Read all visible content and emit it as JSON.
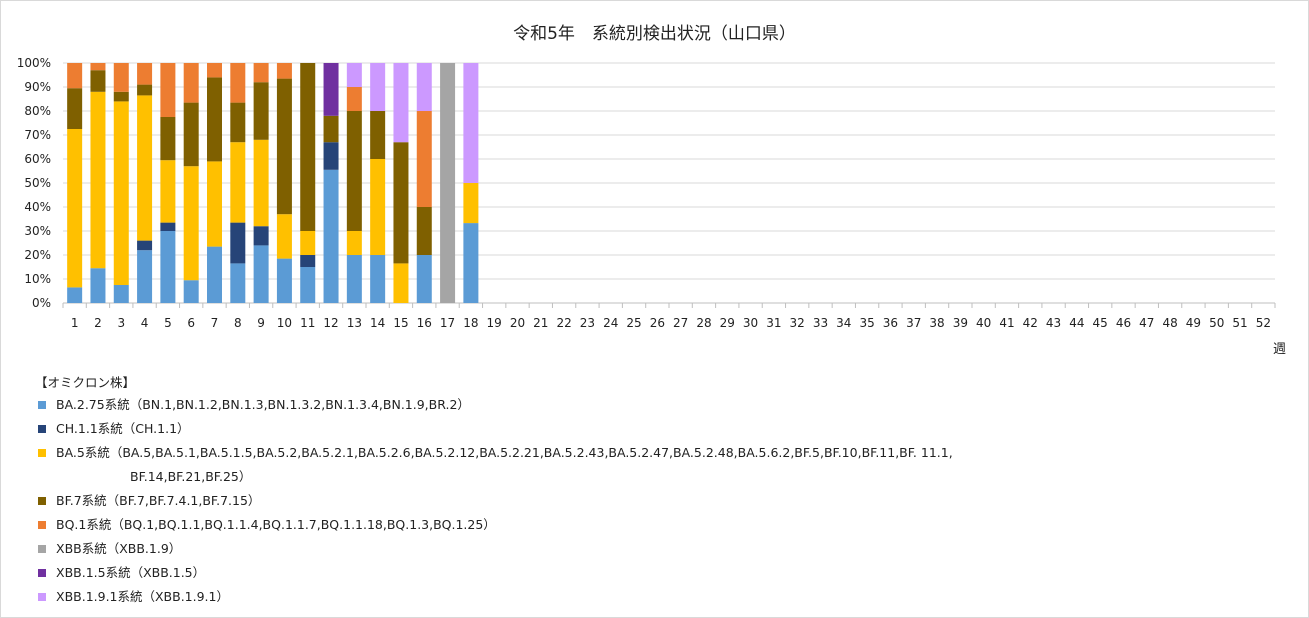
{
  "chart_data": {
    "type": "bar",
    "stacked": true,
    "percent": true,
    "title": "令和5年　系統別検出状況（山口県）",
    "xlabel": "週",
    "ylabel": "",
    "ylim": [
      0,
      100
    ],
    "yticks": [
      "0%",
      "10%",
      "20%",
      "30%",
      "40%",
      "50%",
      "60%",
      "70%",
      "80%",
      "90%",
      "100%"
    ],
    "grid": true,
    "legend_position": "bottom-left",
    "legend_title": "【オミクロン株】",
    "categories": [
      "1",
      "2",
      "3",
      "4",
      "5",
      "6",
      "7",
      "8",
      "9",
      "10",
      "11",
      "12",
      "13",
      "14",
      "15",
      "16",
      "17",
      "18",
      "19",
      "20",
      "21",
      "22",
      "23",
      "24",
      "25",
      "26",
      "27",
      "28",
      "29",
      "30",
      "31",
      "32",
      "33",
      "34",
      "35",
      "36",
      "37",
      "38",
      "39",
      "40",
      "41",
      "42",
      "43",
      "44",
      "45",
      "46",
      "47",
      "48",
      "49",
      "50",
      "51",
      "52"
    ],
    "series": [
      {
        "name": "BA.2.75系統",
        "legend_label": "BA.2.75系統（BN.1,BN.1.2,BN.1.3,BN.1.3.2,BN.1.3.4,BN.1.9,BR.2）",
        "color": "#5B9BD5",
        "values": [
          6.5,
          14.5,
          7.5,
          22,
          30,
          9.5,
          23.5,
          16.5,
          24,
          18.5,
          15,
          55.5,
          20,
          20,
          0,
          20,
          0,
          33.3,
          0,
          0,
          0,
          0,
          0,
          0,
          0,
          0,
          0,
          0,
          0,
          0,
          0,
          0,
          0,
          0,
          0,
          0,
          0,
          0,
          0,
          0,
          0,
          0,
          0,
          0,
          0,
          0,
          0,
          0,
          0,
          0,
          0,
          0
        ]
      },
      {
        "name": "CH.1.1系統",
        "legend_label": "CH.1.1系統（CH.1.1）",
        "color": "#264478",
        "values": [
          0,
          0,
          0,
          4,
          3.5,
          0,
          0,
          17,
          8,
          0,
          5,
          11.5,
          0,
          0,
          0,
          0,
          0,
          0,
          0,
          0,
          0,
          0,
          0,
          0,
          0,
          0,
          0,
          0,
          0,
          0,
          0,
          0,
          0,
          0,
          0,
          0,
          0,
          0,
          0,
          0,
          0,
          0,
          0,
          0,
          0,
          0,
          0,
          0,
          0,
          0,
          0,
          0
        ]
      },
      {
        "name": "BA.5系統",
        "legend_label": "BA.5系統（BA.5,BA.5.1,BA.5.1.5,BA.5.2,BA.5.2.1,BA.5.2.6,BA.5.2.12,BA.5.2.21,BA.5.2.43,BA.5.2.47,BA.5.2.48,BA.5.6.2,BF.5,BF.10,BF.11,BF. 11.1,",
        "legend_label_cont": "BF.14,BF.21,BF.25）",
        "color": "#FFC000",
        "values": [
          66,
          73.5,
          76.5,
          60.5,
          26,
          47.5,
          35.5,
          33.5,
          36,
          18.5,
          10,
          0,
          10,
          40,
          16.5,
          0,
          0,
          16.7,
          0,
          0,
          0,
          0,
          0,
          0,
          0,
          0,
          0,
          0,
          0,
          0,
          0,
          0,
          0,
          0,
          0,
          0,
          0,
          0,
          0,
          0,
          0,
          0,
          0,
          0,
          0,
          0,
          0,
          0,
          0,
          0,
          0,
          0
        ]
      },
      {
        "name": "BF.7系統",
        "legend_label": "BF.7系統（BF.7,BF.7.4.1,BF.7.15）",
        "color": "#7F6000",
        "values": [
          17,
          9,
          4,
          4.5,
          18,
          26.5,
          35,
          16.5,
          24,
          56.5,
          70,
          11,
          50,
          20,
          50.5,
          20,
          0,
          0,
          0,
          0,
          0,
          0,
          0,
          0,
          0,
          0,
          0,
          0,
          0,
          0,
          0,
          0,
          0,
          0,
          0,
          0,
          0,
          0,
          0,
          0,
          0,
          0,
          0,
          0,
          0,
          0,
          0,
          0,
          0,
          0,
          0,
          0
        ]
      },
      {
        "name": "BQ.1系統",
        "legend_label": "BQ.1系統（BQ.1,BQ.1.1,BQ.1.1.4,BQ.1.1.7,BQ.1.1.18,BQ.1.3,BQ.1.25）",
        "color": "#ED7D31",
        "values": [
          10.5,
          3,
          12,
          9,
          22.5,
          16.5,
          6,
          16.5,
          8,
          6.5,
          0,
          0,
          10,
          0,
          0,
          40,
          0,
          0,
          0,
          0,
          0,
          0,
          0,
          0,
          0,
          0,
          0,
          0,
          0,
          0,
          0,
          0,
          0,
          0,
          0,
          0,
          0,
          0,
          0,
          0,
          0,
          0,
          0,
          0,
          0,
          0,
          0,
          0,
          0,
          0,
          0,
          0
        ]
      },
      {
        "name": "XBB系統",
        "legend_label": "XBB系統（XBB.1.9）",
        "color": "#A5A5A5",
        "values": [
          0,
          0,
          0,
          0,
          0,
          0,
          0,
          0,
          0,
          0,
          0,
          0,
          0,
          0,
          0,
          0,
          100,
          0,
          0,
          0,
          0,
          0,
          0,
          0,
          0,
          0,
          0,
          0,
          0,
          0,
          0,
          0,
          0,
          0,
          0,
          0,
          0,
          0,
          0,
          0,
          0,
          0,
          0,
          0,
          0,
          0,
          0,
          0,
          0,
          0,
          0,
          0
        ]
      },
      {
        "name": "XBB.1.5系統",
        "legend_label": "XBB.1.5系統（XBB.1.5）",
        "color": "#7030A0",
        "values": [
          0,
          0,
          0,
          0,
          0,
          0,
          0,
          0,
          0,
          0,
          0,
          22,
          0,
          0,
          0,
          0,
          0,
          0,
          0,
          0,
          0,
          0,
          0,
          0,
          0,
          0,
          0,
          0,
          0,
          0,
          0,
          0,
          0,
          0,
          0,
          0,
          0,
          0,
          0,
          0,
          0,
          0,
          0,
          0,
          0,
          0,
          0,
          0,
          0,
          0,
          0,
          0
        ]
      },
      {
        "name": "XBB.1.9.1系統",
        "legend_label": "XBB.1.9.1系統（XBB.1.9.1）",
        "color": "#CC99FF",
        "values": [
          0,
          0,
          0,
          0,
          0,
          0,
          0,
          0,
          0,
          0,
          0,
          0,
          10,
          20,
          33,
          20,
          0,
          50,
          0,
          0,
          0,
          0,
          0,
          0,
          0,
          0,
          0,
          0,
          0,
          0,
          0,
          0,
          0,
          0,
          0,
          0,
          0,
          0,
          0,
          0,
          0,
          0,
          0,
          0,
          0,
          0,
          0,
          0,
          0,
          0,
          0,
          0
        ]
      }
    ]
  }
}
